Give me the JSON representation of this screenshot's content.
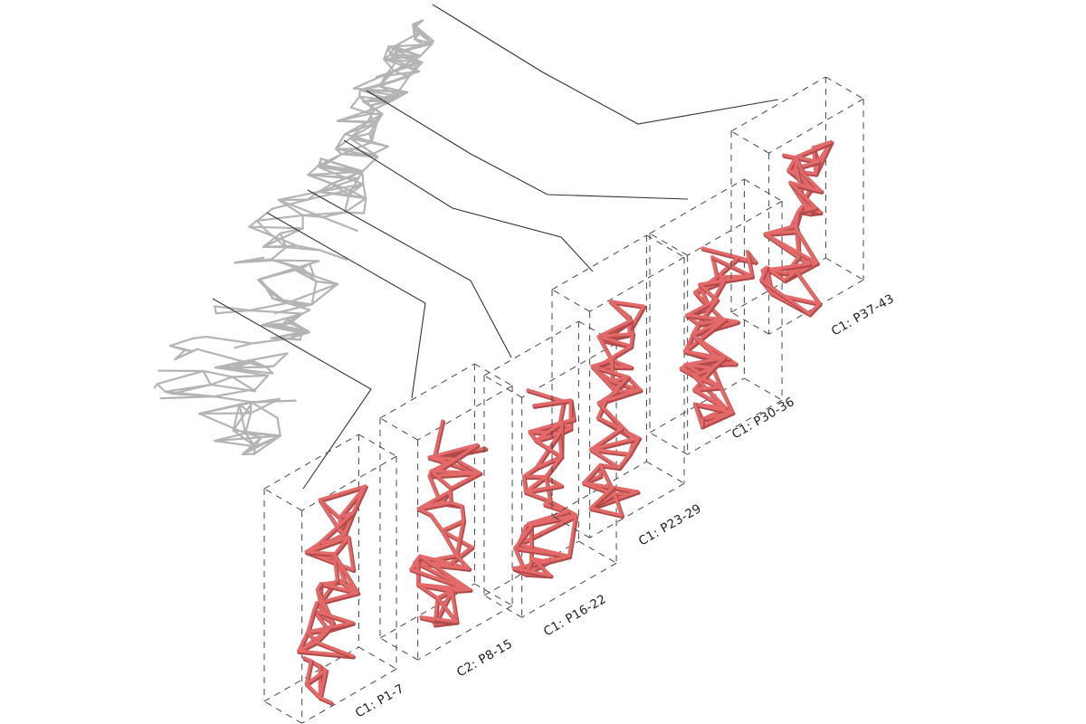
{
  "diagram": {
    "colors": {
      "overview_structure": "#b4b4b4",
      "segment_structure": "#e46a6a",
      "segment_structure_shadow": "#b04a4a",
      "box_outline": "#444444",
      "leader_line": "#333333",
      "label_text": "#222222"
    },
    "segments": [
      {
        "id": "p1-7",
        "label": "C1: P1-7"
      },
      {
        "id": "p8-15",
        "label": "C2: P8-15"
      },
      {
        "id": "p16-22",
        "label": "C1: P16-22"
      },
      {
        "id": "p23-29",
        "label": "C1: P23-29"
      },
      {
        "id": "p30-36",
        "label": "C1: P30-36"
      },
      {
        "id": "p37-43",
        "label": "C1: P37-43"
      }
    ]
  }
}
